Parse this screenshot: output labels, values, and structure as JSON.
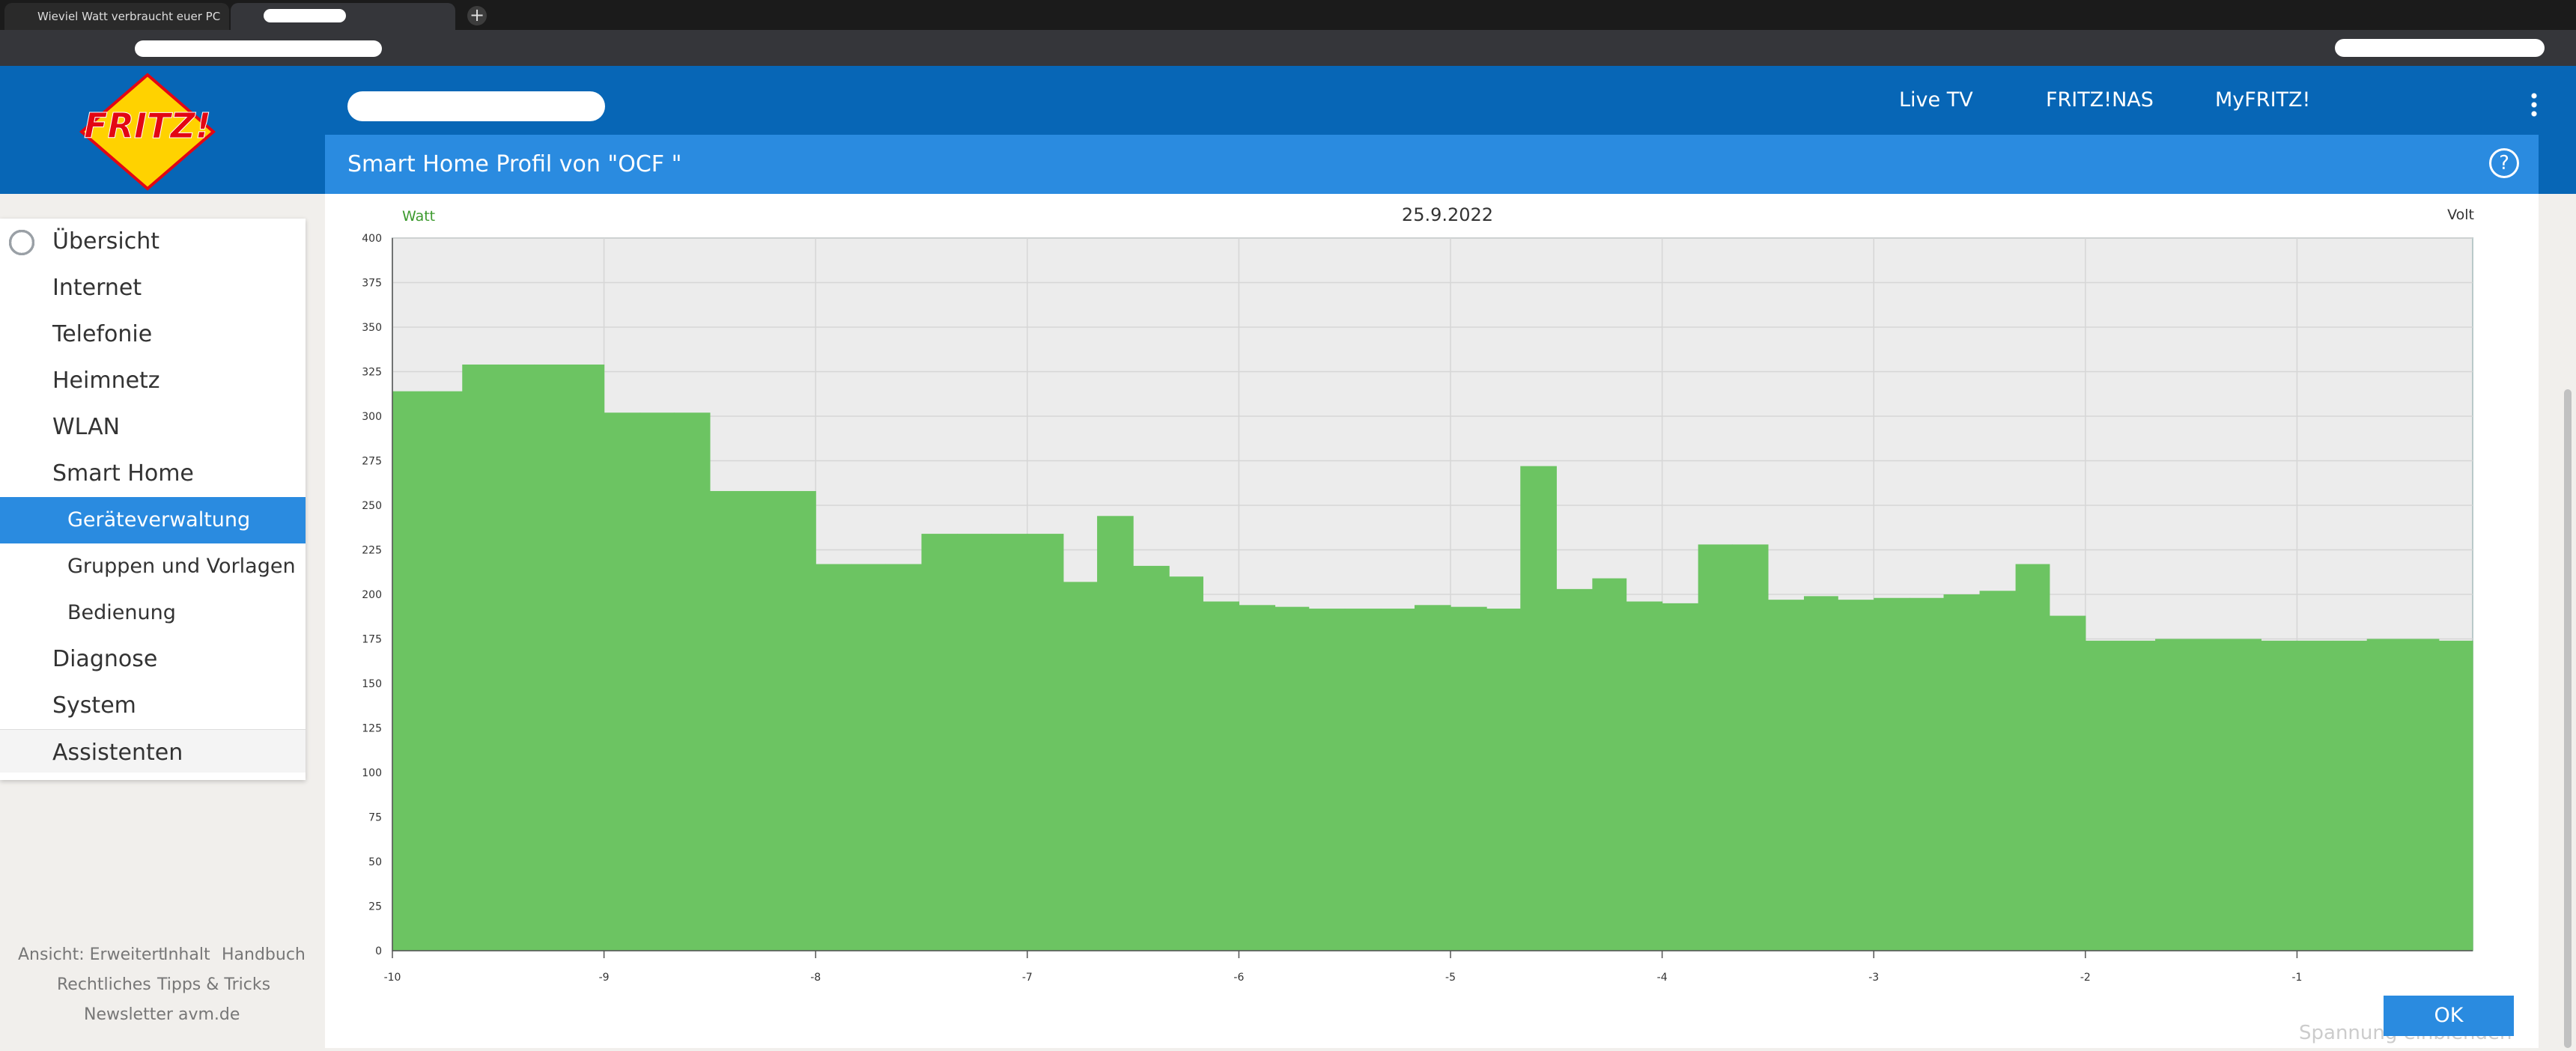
{
  "browser": {
    "tabs": [
      "Wieviel Watt verbraucht euer PC"
    ]
  },
  "logo": "FRITZ!",
  "header": {
    "nav": [
      "Live TV",
      "FRITZ!NAS",
      "MyFRITZ!"
    ],
    "page_title": "Smart Home Profil von \"OCF \""
  },
  "sidebar": {
    "items": [
      "Übersicht",
      "Internet",
      "Telefonie",
      "Heimnetz",
      "WLAN",
      "Smart Home",
      "Geräteverwaltung",
      "Gruppen und Vorlagen",
      "Bedienung",
      "Diagnose",
      "System",
      "Assistenten"
    ],
    "footer": [
      "Ansicht: Erweitert",
      "Inhalt",
      "Handbuch",
      "Rechtliches",
      "Tipps & Tricks",
      "Newsletter",
      "avm.de"
    ]
  },
  "chart_data": {
    "type": "histogram",
    "title": "25.9.2022",
    "y_label": "Watt",
    "y2_label": "Volt",
    "color": "#6cc462",
    "grid": true,
    "bins": [
      -10,
      -9.83,
      -9.67,
      -9.5,
      -9.33,
      -9.17,
      -9,
      -8.83,
      -8.67,
      -8.5,
      -8.33,
      -8.17,
      -8,
      -7.83,
      -7.67,
      -7.5,
      -7.33,
      -7.17,
      -7,
      -6.83,
      -6.67,
      -6.5,
      -6.33,
      -6.17,
      -6,
      -5.83,
      -5.67,
      -5.5,
      -5.33,
      -5.17,
      -5,
      -4.83,
      -4.67,
      -4.5,
      -4.33,
      -4.17,
      -4,
      -3.83,
      -3.67,
      -3.5,
      -3.33,
      -3.17,
      -3,
      -2.83,
      -2.67,
      -2.5,
      -2.33,
      -2.17,
      -2,
      -1.83,
      -1.67,
      -1.5,
      -1.33,
      -1.17,
      -1,
      -0.83,
      -0.67,
      -0.5,
      -0.33,
      -0.17
    ],
    "values": [
      314,
      314,
      329,
      329,
      329,
      329,
      302,
      302,
      302,
      258,
      258,
      258,
      217,
      217,
      217,
      234,
      234,
      234,
      234,
      207,
      244,
      216,
      210,
      196,
      194,
      193,
      192,
      192,
      192,
      194,
      193,
      192,
      272,
      203,
      209,
      196,
      195,
      228,
      228,
      197,
      199,
      197,
      198,
      198,
      200,
      202,
      217,
      188,
      174,
      174,
      175,
      175,
      175,
      174,
      174,
      174,
      175,
      175,
      174
    ],
    "xlim": [
      -10,
      -0.17
    ],
    "xticks": [
      -10,
      -9,
      -8,
      -7,
      -6,
      -5,
      -4,
      -3,
      -2,
      -1
    ],
    "ylim": [
      0,
      400
    ],
    "yticks": [
      0,
      25,
      50,
      75,
      100,
      125,
      150,
      175,
      200,
      225,
      250,
      275,
      300,
      325,
      350,
      375,
      400
    ]
  },
  "links": {
    "voltage": "Spannung einblenden"
  },
  "buttons": {
    "ok": "OK"
  }
}
